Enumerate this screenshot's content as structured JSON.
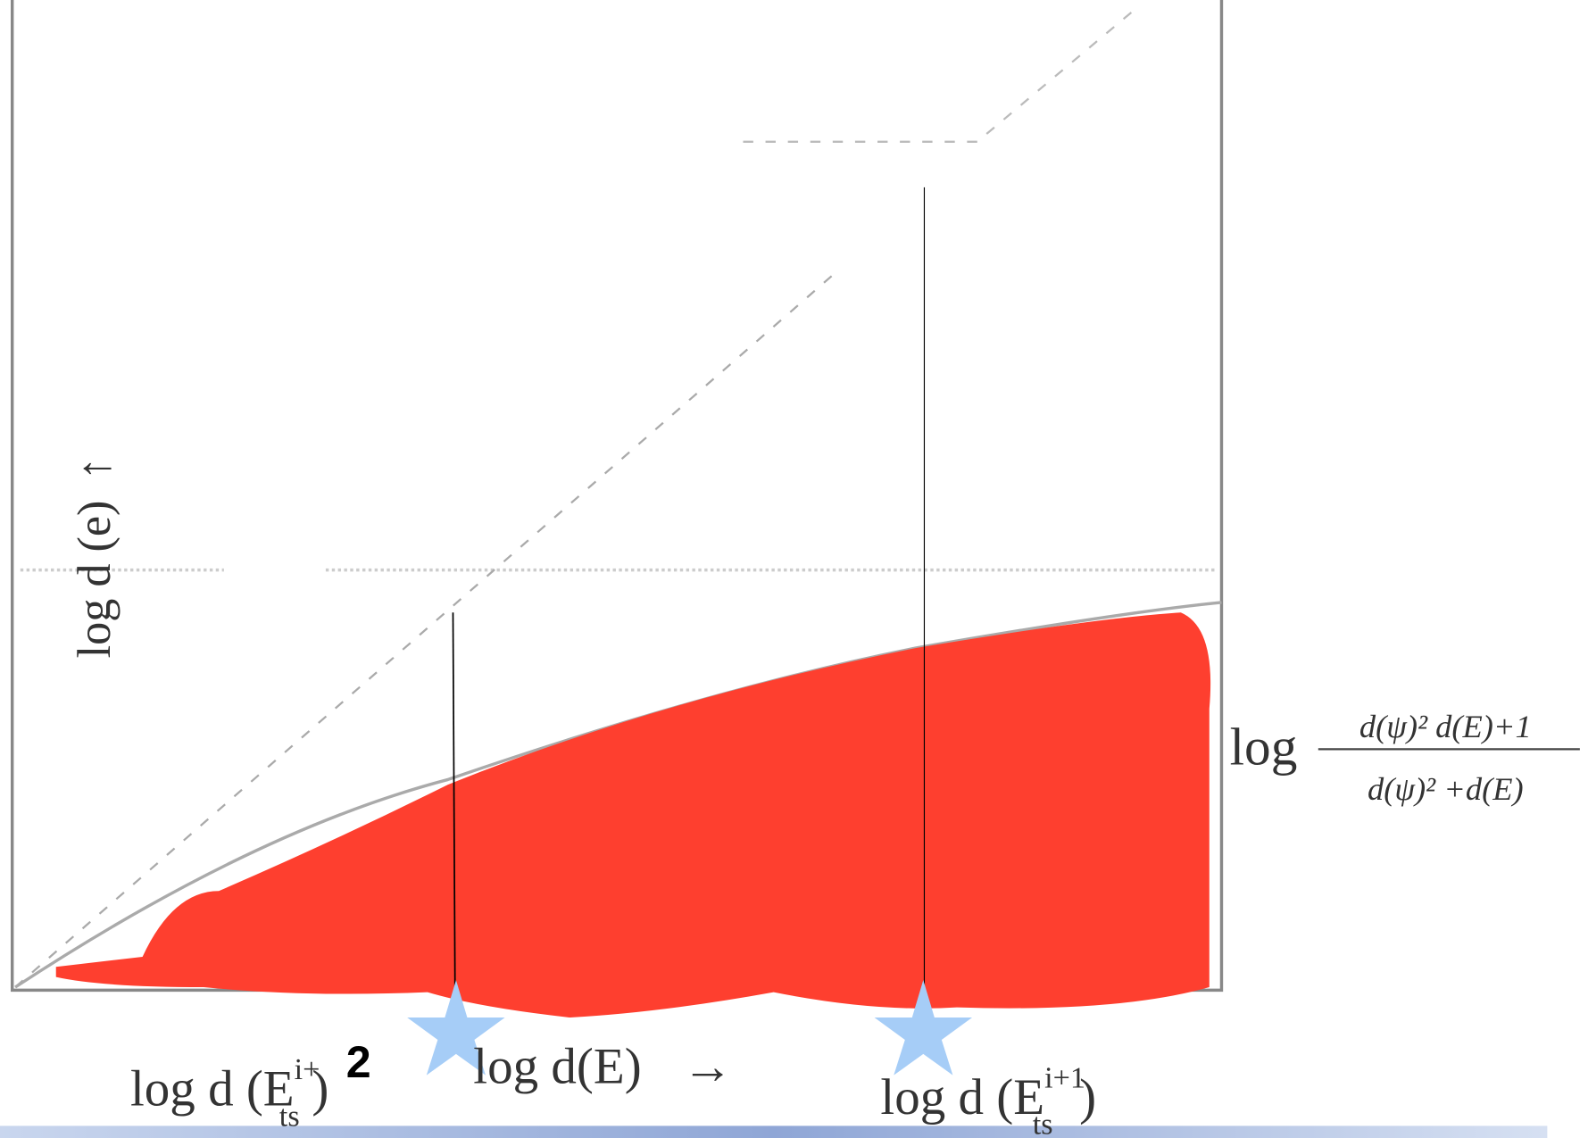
{
  "y_axis_label": {
    "base": "log d (e)",
    "arrow": "↑"
  },
  "x_axis_label": {
    "base": "log d(E)",
    "arrow": "→"
  },
  "markers": [
    {
      "prefix": "log d (E",
      "sub": "ts",
      "sup": "i+",
      "close": ")",
      "annotation": "2"
    },
    {
      "prefix": "log d (E",
      "sub": "ts",
      "sup": "i+1",
      "close": ")"
    }
  ],
  "curve_label": {
    "prefix": "log",
    "numerator": "d(ψ)² d(E)+1",
    "denominator": "d(ψ)² +d(E)"
  }
}
